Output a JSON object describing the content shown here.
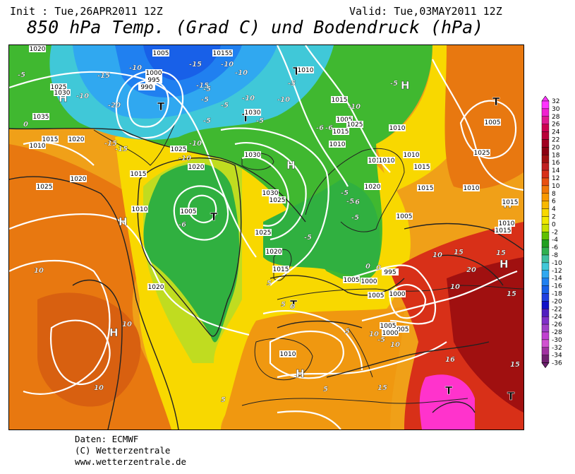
{
  "header": {
    "init": "Init : Tue,26APR2011 12Z",
    "valid": "Valid: Tue,03MAY2011 12Z",
    "title": "850 hPa Temp. (Grad C) und Bodendruck (hPa)"
  },
  "credits": {
    "line1": "Daten: ECMWF",
    "line2": "(C) Wetterzentrale",
    "line3": "www.wetterzentrale.de"
  },
  "legend": {
    "levels": [
      "32",
      "30",
      "28",
      "26",
      "24",
      "22",
      "20",
      "18",
      "16",
      "14",
      "12",
      "10",
      "8",
      "6",
      "4",
      "2",
      "0",
      "-2",
      "-4",
      "-6",
      "-8",
      "-10",
      "-12",
      "-14",
      "-16",
      "-18",
      "-20",
      "-22",
      "-24",
      "-26",
      "-28",
      "-30",
      "-32",
      "-34",
      "-36"
    ],
    "colors": [
      "#ff33ff",
      "#f020d0",
      "#e01890",
      "#cc0050",
      "#b80038",
      "#a00020",
      "#8b0010",
      "#a01010",
      "#c02020",
      "#d83018",
      "#e85010",
      "#f07808",
      "#f89800",
      "#f8b800",
      "#f8d800",
      "#f0e800",
      "#c8e000",
      "#60c000",
      "#20a020",
      "#30b050",
      "#40c0a0",
      "#40c8d8",
      "#30a8f0",
      "#2080f0",
      "#1860e8",
      "#2040e0",
      "#1010c8",
      "#5020c0",
      "#8030c8",
      "#a040c8",
      "#c040d0",
      "#d050d0",
      "#a030a0",
      "#702070"
    ]
  },
  "map": {
    "pressure_centers": [
      {
        "label": "H",
        "type": "high"
      },
      {
        "label": "H",
        "type": "high"
      },
      {
        "label": "H",
        "type": "high"
      },
      {
        "label": "H",
        "type": "high"
      },
      {
        "label": "H",
        "type": "high"
      },
      {
        "label": "H",
        "type": "high"
      },
      {
        "label": "H",
        "type": "high"
      },
      {
        "label": "H",
        "type": "high"
      },
      {
        "label": "T",
        "type": "low"
      },
      {
        "label": "T",
        "type": "low"
      },
      {
        "label": "T",
        "type": "low"
      },
      {
        "label": "T",
        "type": "low"
      },
      {
        "label": "T",
        "type": "low"
      },
      {
        "label": "T",
        "type": "low"
      },
      {
        "label": "T",
        "type": "low"
      },
      {
        "label": "T",
        "type": "low"
      }
    ],
    "isobar_labels": [
      "1020",
      "1005",
      "1015",
      "995",
      "990",
      "1000",
      "1025",
      "1030",
      "1035",
      "1020",
      "1015",
      "1010",
      "1020",
      "1025",
      "1030",
      "1015",
      "1010",
      "1015",
      "1010",
      "1005",
      "1030",
      "1025",
      "1020",
      "1015",
      "1010",
      "1005",
      "1020",
      "1025",
      "1015",
      "1025",
      "1030",
      "1020",
      "1015",
      "1010",
      "1005",
      "1000",
      "995",
      "1000",
      "1005",
      "1010",
      "1015",
      "1010",
      "1015",
      "1005",
      "1010",
      "1025",
      "1005",
      "1005",
      "1000",
      "1005",
      "1015",
      "1025",
      "1010",
      "1015",
      "1015",
      "1020",
      "1010"
    ],
    "temperature_labels": [
      "-5",
      "-10",
      "-15",
      "-10",
      "-10",
      "-15",
      "-20",
      "-15",
      "-10",
      "-5",
      "-10",
      "-15",
      "-15",
      "-10",
      "-10",
      "-5",
      "0",
      "-5",
      "-10",
      "-5",
      "-6",
      "-5",
      "-5",
      "-5",
      "-6",
      "-5",
      "-10",
      "-5",
      "-5",
      "-6",
      "-5",
      "-6",
      "0",
      "5",
      "5",
      "10",
      "10",
      "10",
      "10",
      "10",
      "15",
      "15",
      "15",
      "15",
      "20",
      "16",
      "15",
      "10",
      "5",
      "0",
      "10",
      "5",
      "5",
      "0",
      "-5"
    ]
  }
}
